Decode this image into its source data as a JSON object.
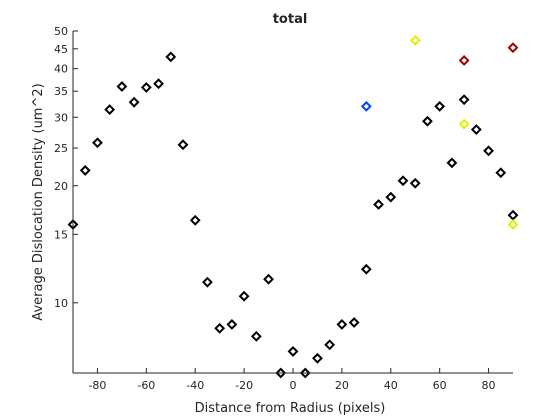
{
  "chart_data": {
    "type": "scatter",
    "title": "total",
    "xlabel": "Distance from Radius (pixels)",
    "ylabel": "Average Dislocation Density (um^2)",
    "xlim": [
      -90,
      90
    ],
    "ylim": [
      6.6,
      50
    ],
    "yscale": "log",
    "grid": false,
    "x_ticks": [
      -80,
      -60,
      -40,
      -20,
      0,
      20,
      40,
      60,
      80
    ],
    "x_tick_labels": [
      "-80",
      "-60",
      "-40",
      "-20",
      "0",
      "20",
      "40",
      "60",
      "80"
    ],
    "y_ticks": [
      10,
      15,
      20,
      25,
      30,
      35,
      40,
      45,
      50
    ],
    "y_tick_labels": [
      "10",
      "15",
      "20",
      "25",
      "30",
      "35",
      "40",
      "45",
      "50"
    ],
    "series": [
      {
        "color": "#000000",
        "marker": "diamond",
        "points": [
          [
            -90,
            15.9
          ],
          [
            -85,
            21.9
          ],
          [
            -80,
            25.8
          ],
          [
            -75,
            31.4
          ],
          [
            -70,
            36.0
          ],
          [
            -65,
            32.8
          ],
          [
            -60,
            35.8
          ],
          [
            -55,
            36.6
          ],
          [
            -50,
            42.9
          ],
          [
            -45,
            25.5
          ],
          [
            -40,
            16.3
          ],
          [
            -35,
            11.3
          ],
          [
            -30,
            8.6
          ],
          [
            -25,
            8.8
          ],
          [
            -20,
            10.4
          ],
          [
            -15,
            8.2
          ],
          [
            -10,
            11.5
          ],
          [
            -5,
            6.6
          ],
          [
            0,
            7.5
          ],
          [
            5,
            6.6
          ],
          [
            10,
            7.2
          ],
          [
            15,
            7.8
          ],
          [
            20,
            8.8
          ],
          [
            25,
            8.9
          ],
          [
            30,
            12.2
          ],
          [
            35,
            17.9
          ],
          [
            40,
            18.7
          ],
          [
            45,
            20.6
          ],
          [
            50,
            20.3
          ],
          [
            55,
            29.3
          ],
          [
            60,
            32.0
          ],
          [
            65,
            22.9
          ],
          [
            70,
            33.3
          ],
          [
            75,
            27.9
          ],
          [
            80,
            24.6
          ],
          [
            85,
            21.6
          ],
          [
            90,
            16.8
          ]
        ]
      },
      {
        "color": "#e0f000",
        "marker": "diamond",
        "points": [
          [
            50,
            47.3
          ],
          [
            70,
            28.8
          ],
          [
            90,
            15.9
          ]
        ]
      },
      {
        "color": "#a00000",
        "marker": "diamond",
        "points": [
          [
            70,
            42.0
          ],
          [
            90,
            45.3
          ]
        ]
      },
      {
        "color": "#0044ff",
        "marker": "diamond",
        "points": [
          [
            30,
            32.0
          ]
        ]
      }
    ]
  }
}
